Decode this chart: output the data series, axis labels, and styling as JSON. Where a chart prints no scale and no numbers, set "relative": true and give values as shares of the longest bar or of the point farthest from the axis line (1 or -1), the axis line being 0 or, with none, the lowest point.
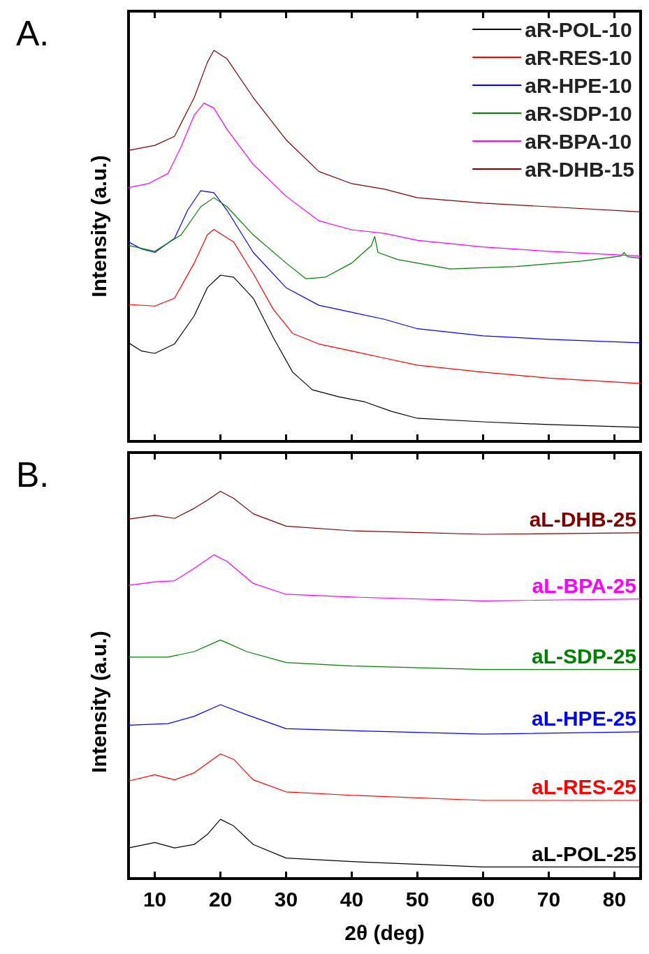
{
  "chart_data": [
    {
      "type": "line",
      "title": "A.",
      "ylabel": "Intensity (a.u.)",
      "relative": true,
      "xlim": [
        6,
        84
      ],
      "xticks": [
        10,
        20,
        30,
        40,
        50,
        60,
        70,
        80
      ],
      "tick_labels": false,
      "legend": "top right",
      "grid": false,
      "marker": "none",
      "series": [
        {
          "name": "aR-POL-10",
          "color": "#000000",
          "x": [
            6,
            8,
            10,
            13,
            16,
            18,
            20,
            22,
            25,
            28,
            31,
            34,
            38,
            42,
            46,
            50,
            60,
            70,
            84
          ],
          "values": [
            0.252,
            0.231,
            0.225,
            0.249,
            0.321,
            0.393,
            0.425,
            0.42,
            0.366,
            0.267,
            0.177,
            0.132,
            0.114,
            0.101,
            0.077,
            0.059,
            0.05,
            0.043,
            0.036
          ]
        },
        {
          "name": "aR-RES-10",
          "color": "#ff0000",
          "x": [
            6,
            10,
            13,
            16,
            18,
            19,
            22,
            25,
            28,
            31,
            35,
            40,
            45,
            50,
            60,
            70,
            84
          ],
          "values": [
            0.35,
            0.346,
            0.366,
            0.456,
            0.528,
            0.542,
            0.51,
            0.429,
            0.339,
            0.276,
            0.249,
            0.231,
            0.213,
            0.195,
            0.177,
            0.162,
            0.148
          ]
        },
        {
          "name": "aR-HPE-10",
          "color": "#0000ff",
          "x": [
            6,
            8,
            10,
            13,
            15,
            17,
            19,
            21,
            25,
            30,
            35,
            40,
            45,
            50,
            60,
            70,
            84
          ],
          "values": [
            0.51,
            0.492,
            0.483,
            0.519,
            0.591,
            0.641,
            0.636,
            0.591,
            0.483,
            0.393,
            0.348,
            0.33,
            0.312,
            0.288,
            0.27,
            0.261,
            0.252
          ]
        },
        {
          "name": "aR-SDP-10",
          "color": "#008000",
          "x": [
            6,
            10,
            14,
            17,
            19,
            21,
            25,
            30,
            33,
            36,
            40,
            43,
            43.5,
            44,
            47,
            55,
            65,
            75,
            81,
            81.5,
            82,
            84
          ],
          "values": [
            0.501,
            0.486,
            0.528,
            0.6,
            0.623,
            0.6,
            0.528,
            0.456,
            0.416,
            0.42,
            0.456,
            0.501,
            0.524,
            0.483,
            0.465,
            0.441,
            0.447,
            0.461,
            0.474,
            0.483,
            0.472,
            0.468
          ]
        },
        {
          "name": "aR-BPA-10",
          "color": "#ff00ff",
          "x": [
            6,
            9,
            12,
            14,
            16,
            17.5,
            19,
            21,
            25,
            30,
            35,
            40,
            45,
            50,
            60,
            70,
            84
          ],
          "values": [
            0.649,
            0.659,
            0.685,
            0.753,
            0.834,
            0.865,
            0.852,
            0.798,
            0.708,
            0.627,
            0.564,
            0.541,
            0.532,
            0.514,
            0.497,
            0.486,
            0.474
          ]
        },
        {
          "name": "aR-DHB-15",
          "color": "#800000",
          "x": [
            6,
            10,
            13,
            16,
            18,
            19,
            21,
            25,
            30,
            35,
            40,
            45,
            50,
            60,
            70,
            84
          ],
          "values": [
            0.744,
            0.757,
            0.78,
            0.879,
            0.969,
            1.0,
            0.978,
            0.879,
            0.771,
            0.69,
            0.659,
            0.645,
            0.623,
            0.609,
            0.6,
            0.587
          ]
        }
      ]
    },
    {
      "type": "line",
      "title": "B.",
      "ylabel": "Intensity (a.u.)",
      "xlabel": "2θ (deg)",
      "relative": true,
      "xlim": [
        6,
        84
      ],
      "xticks": [
        10,
        20,
        30,
        40,
        50,
        60,
        70,
        80
      ],
      "tick_labels": "x",
      "legend": false,
      "grid": false,
      "marker": "none",
      "series": [
        {
          "name": "aL-DHB-25",
          "color": "#800000",
          "x": [
            6,
            10,
            13,
            16,
            18,
            20,
            22,
            25,
            30,
            40,
            60,
            84
          ],
          "values": [
            0.928,
            0.938,
            0.93,
            0.956,
            0.977,
            1.0,
            0.982,
            0.942,
            0.91,
            0.898,
            0.889,
            0.893
          ]
        },
        {
          "name": "aL-BPA-25",
          "color": "#ff00ff",
          "x": [
            6,
            10,
            13,
            16,
            19,
            21,
            25,
            30,
            40,
            60,
            84
          ],
          "values": [
            0.757,
            0.766,
            0.769,
            0.801,
            0.836,
            0.819,
            0.762,
            0.734,
            0.727,
            0.717,
            0.722
          ]
        },
        {
          "name": "aL-SDP-25",
          "color": "#008000",
          "x": [
            6,
            12,
            16,
            20,
            24,
            30,
            40,
            60,
            84
          ],
          "values": [
            0.572,
            0.572,
            0.586,
            0.616,
            0.586,
            0.558,
            0.549,
            0.54,
            0.54
          ]
        },
        {
          "name": "aL-HPE-25",
          "color": "#0000ff",
          "x": [
            6,
            12,
            16,
            20,
            24,
            30,
            40,
            60,
            84
          ],
          "values": [
            0.396,
            0.4,
            0.419,
            0.449,
            0.423,
            0.387,
            0.382,
            0.373,
            0.379
          ]
        },
        {
          "name": "aL-RES-25",
          "color": "#ff0000",
          "x": [
            6,
            10,
            13,
            16,
            20,
            22,
            25,
            30,
            40,
            60,
            84
          ],
          "values": [
            0.252,
            0.268,
            0.255,
            0.273,
            0.322,
            0.308,
            0.255,
            0.224,
            0.215,
            0.202,
            0.202
          ]
        },
        {
          "name": "aL-POL-25",
          "color": "#000000",
          "x": [
            6,
            10,
            13,
            16,
            18,
            20,
            22,
            25,
            30,
            40,
            60,
            84
          ],
          "values": [
            0.079,
            0.093,
            0.079,
            0.088,
            0.114,
            0.153,
            0.136,
            0.088,
            0.053,
            0.044,
            0.03,
            0.03
          ]
        }
      ]
    }
  ]
}
